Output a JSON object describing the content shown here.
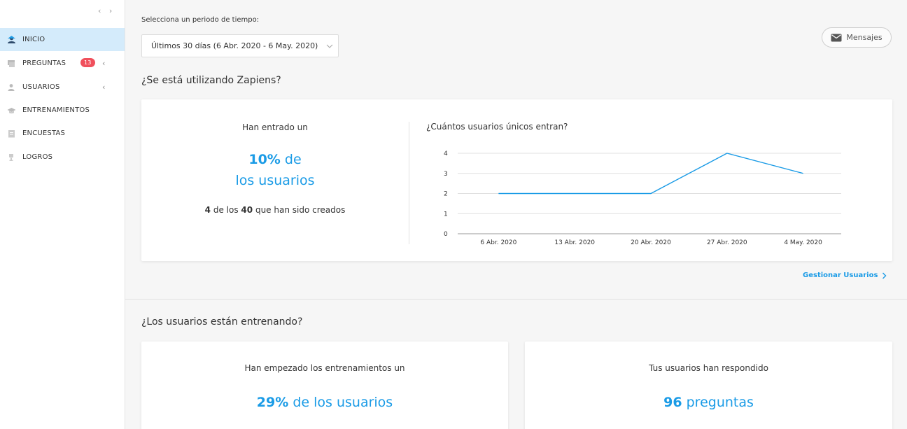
{
  "sidebar": {
    "toggle": "‹ ›",
    "items": [
      {
        "label": "INICIO",
        "icon": "home-user-icon",
        "active": true
      },
      {
        "label": "PREGUNTAS",
        "icon": "questions-icon",
        "badge": "13",
        "has_chevron": true
      },
      {
        "label": "USUARIOS",
        "icon": "user-icon",
        "has_chevron": true
      },
      {
        "label": "ENTRENAMIENTOS",
        "icon": "graduation-cap-icon"
      },
      {
        "label": "ENCUESTAS",
        "icon": "clipboard-icon"
      },
      {
        "label": "LOGROS",
        "icon": "trophy-icon"
      }
    ]
  },
  "header": {
    "period_label": "Selecciona un periodo de tiempo:",
    "period_value": "Últimos 30 días (6 Abr. 2020 - 6 May. 2020)",
    "messages_label": "Mensajes"
  },
  "section1": {
    "title": "¿Se está utilizando Zapiens?",
    "left": {
      "intro": "Han entrado un",
      "percent": "10%",
      "percent_suffix": "de",
      "line2": "los usuarios",
      "count": "4",
      "count_mid": "de los",
      "total": "40",
      "count_suffix": "que han sido creados"
    },
    "chart_title": "¿Cuántos usuarios únicos entran?",
    "manage_link": "Gestionar Usuarios"
  },
  "section2": {
    "title": "¿Los usuarios están entrenando?",
    "card1": {
      "intro": "Han empezado los entrenamientos un",
      "percent": "29%",
      "suffix": "de los usuarios"
    },
    "card2": {
      "intro": "Tus usuarios han respondido",
      "value": "96",
      "suffix": "preguntas"
    }
  },
  "colors": {
    "accent": "#1a9be6",
    "badge": "#f0505c",
    "active_bg": "#d4ebfb"
  },
  "chart_data": {
    "type": "line",
    "title": "¿Cuántos usuarios únicos entran?",
    "categories": [
      "6 Abr. 2020",
      "13 Abr. 2020",
      "20 Abr. 2020",
      "27 Abr. 2020",
      "4 May. 2020"
    ],
    "series": [
      {
        "values": [
          2,
          2,
          2,
          4,
          3
        ]
      }
    ],
    "ylim": [
      0,
      4
    ],
    "yticks": [
      0,
      1,
      2,
      3,
      4
    ],
    "grid": true,
    "line_color": "#1a9be6"
  }
}
